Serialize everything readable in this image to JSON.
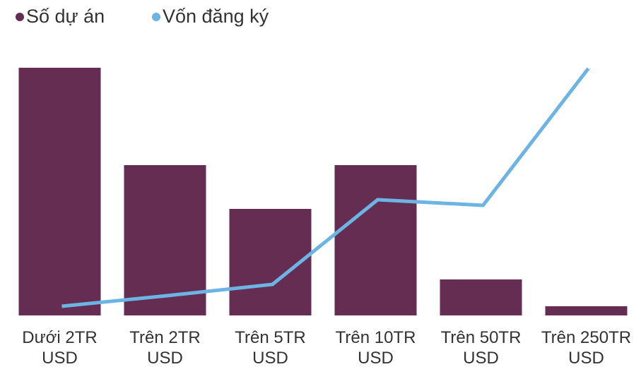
{
  "chart_data": {
    "type": "bar-line",
    "categories": [
      "Dưới 2TR USD",
      "Trên 2TR USD",
      "Trên 5TR USD",
      "Trên 10TR USD",
      "Trên 50TR USD",
      "Trên 250TR USD"
    ],
    "series": [
      {
        "name": "Số dự án",
        "color": "#652d52",
        "type": "bar",
        "values": [
          351,
          213,
          151,
          213,
          51,
          13
        ]
      },
      {
        "name": "Vốn đăng ký",
        "color": "#6cb4e4",
        "type": "line",
        "values": [
          13,
          28,
          44,
          164,
          156,
          350
        ]
      }
    ],
    "ylim": [
      0,
      360
    ],
    "legend": "top-left"
  }
}
